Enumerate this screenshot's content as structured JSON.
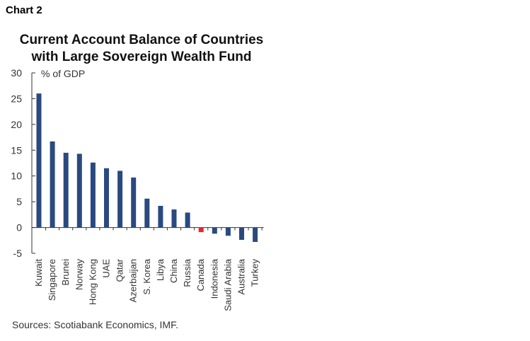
{
  "chart_label": "Chart 2",
  "source": "Sources: Scotiabank Economics, IMF.",
  "colors": {
    "bar": "#2a4a7f",
    "highlight": "#e8262e",
    "axis": "#333333"
  },
  "chart_data": {
    "type": "bar",
    "title": "Current Account Balance of Countries with Large Sovereign Wealth Fund",
    "title_lines": [
      "Current Account Balance of Countries",
      "with Large Sovereign Wealth Fund"
    ],
    "ylabel": "% of GDP",
    "xlabel": "",
    "ylim": [
      -5,
      30
    ],
    "yticks": [
      30,
      25,
      20,
      15,
      10,
      5,
      0,
      -5
    ],
    "grid": false,
    "legend": "none",
    "categories": [
      "Kuwait",
      "Singapore",
      "Brunei",
      "Norway",
      "Hong Kong",
      "UAE",
      "Qatar",
      "Azerbaijan",
      "S. Korea",
      "Libya",
      "China",
      "Russia",
      "Canada",
      "Indonesia",
      "Saudi Arabia",
      "Australia",
      "Turkey"
    ],
    "values": [
      26.0,
      16.7,
      14.5,
      14.3,
      12.6,
      11.5,
      11.0,
      9.7,
      5.6,
      4.2,
      3.5,
      2.9,
      -0.9,
      -1.2,
      -1.6,
      -2.4,
      -2.8
    ],
    "highlight": [
      "Canada"
    ]
  }
}
